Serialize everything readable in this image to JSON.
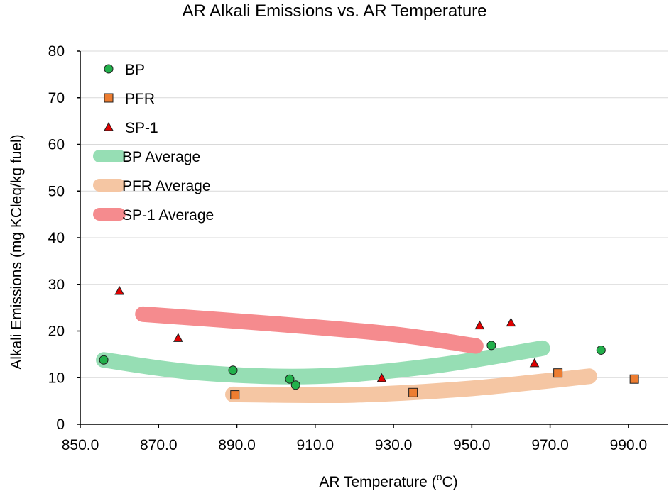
{
  "chart_data": {
    "type": "scatter",
    "title": "AR Alkali Emissions vs. AR Temperature",
    "xlabel_main": "AR Temperature (",
    "xlabel_sup": "o",
    "xlabel_end": "C)",
    "ylabel": "Alkali Emissions (mg KCleq/kg fuel)",
    "xlim": [
      850,
      1000
    ],
    "ylim": [
      0,
      80
    ],
    "x_ticks": [
      "850.0",
      "870.0",
      "890.0",
      "910.0",
      "930.0",
      "950.0",
      "970.0",
      "990.0"
    ],
    "x_tick_values": [
      850,
      870,
      890,
      910,
      930,
      950,
      970,
      990
    ],
    "y_ticks": [
      "0",
      "10",
      "20",
      "30",
      "40",
      "50",
      "60",
      "70",
      "80"
    ],
    "y_tick_values": [
      0,
      10,
      20,
      30,
      40,
      50,
      60,
      70,
      80
    ],
    "grid": "horizontal",
    "legend_position": "top-left",
    "series": [
      {
        "name": "BP",
        "kind": "points",
        "marker": "circle",
        "color": "#22b04b",
        "points": [
          [
            856,
            13.8
          ],
          [
            889,
            11.6
          ],
          [
            903.5,
            9.7
          ],
          [
            905,
            8.4
          ],
          [
            955,
            16.9
          ],
          [
            983,
            15.9
          ]
        ]
      },
      {
        "name": "PFR",
        "kind": "points",
        "marker": "square",
        "color": "#ed7d31",
        "points": [
          [
            889.5,
            6.3
          ],
          [
            935,
            6.8
          ],
          [
            972,
            11.0
          ],
          [
            991.5,
            9.7
          ]
        ]
      },
      {
        "name": "SP-1",
        "kind": "points",
        "marker": "triangle",
        "color": "#e00000",
        "points": [
          [
            860,
            28.6
          ],
          [
            875,
            18.5
          ],
          [
            927,
            9.9
          ],
          [
            952,
            21.2
          ],
          [
            960,
            21.8
          ],
          [
            966,
            13.1
          ]
        ]
      },
      {
        "name": "BP Average",
        "kind": "curve",
        "color": "#96deb4",
        "points": [
          [
            856,
            13.8
          ],
          [
            880,
            11.1
          ],
          [
            910,
            10.3
          ],
          [
            940,
            12.5
          ],
          [
            968,
            16.3
          ]
        ]
      },
      {
        "name": "PFR Average",
        "kind": "curve",
        "color": "#f5c6a3",
        "points": [
          [
            889,
            6.4
          ],
          [
            920,
            6.3
          ],
          [
            950,
            7.7
          ],
          [
            980,
            10.3
          ]
        ]
      },
      {
        "name": "SP-1 Average",
        "kind": "curve",
        "color": "#f58b8e",
        "points": [
          [
            866,
            23.6
          ],
          [
            900,
            21.5
          ],
          [
            930,
            19.3
          ],
          [
            951,
            16.8
          ]
        ]
      }
    ]
  }
}
